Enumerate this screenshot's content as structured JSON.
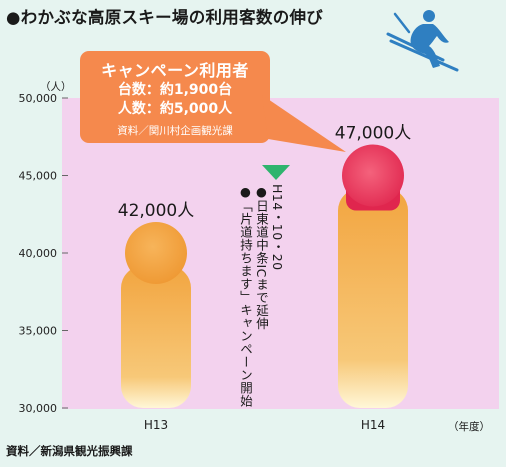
{
  "title": "●わかぶな高原スキー場の利用客数の伸び",
  "callout": {
    "title": "キャンペーン利用者",
    "line1": "台数：約1,900台",
    "line2": "人数：約5,000人",
    "source": "資料／関川村企画観光課"
  },
  "annotation": {
    "date": "H14・10・20",
    "line1": "●日東道中条ICまで延伸",
    "line2": "●「片道持ちます」キャンペーン開始"
  },
  "footer_source": "資料／新潟県観光振興課",
  "colors": {
    "background": "#e6f4f0",
    "plot_bg": "#f3d2ee",
    "bar_orange": "#f2a540",
    "bar_h14_head": "#e8335a",
    "callout": "#f5894d",
    "marker": "#2eb46e"
  },
  "icon": "skier-icon",
  "chart_data": {
    "type": "bar",
    "title": "わかぶな高原スキー場の利用客数の伸び",
    "xlabel": "（年度）",
    "ylabel": "（人）",
    "categories": [
      "H13",
      "H14"
    ],
    "values": [
      42000,
      47000
    ],
    "value_labels": [
      "42,000人",
      "47,000人"
    ],
    "yticks": [
      30000,
      35000,
      40000,
      45000,
      50000
    ],
    "ytick_labels": [
      "30,000",
      "35,000",
      "40,000",
      "45,000",
      "50,000"
    ],
    "ylim": [
      30000,
      50000
    ],
    "grid": false,
    "legend": "none"
  }
}
